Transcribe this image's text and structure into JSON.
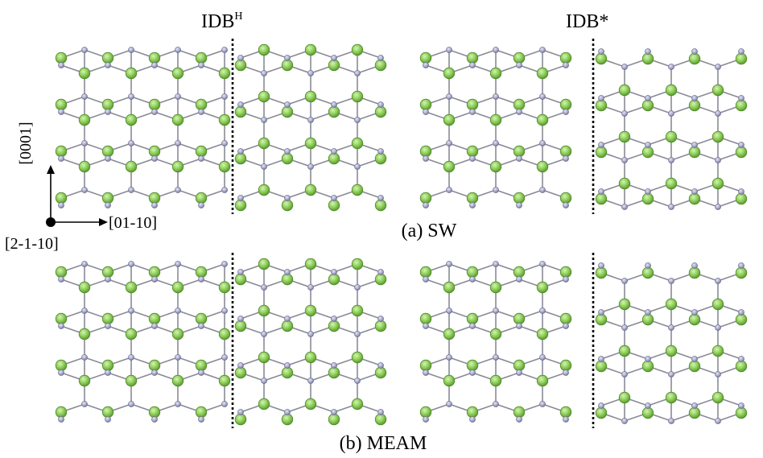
{
  "labels": {
    "idbh_main": "IDB",
    "idbh_sup": "H",
    "idbstar": "IDB*",
    "panel_a": "(a) SW",
    "panel_b": "(b) MEAM",
    "axis_vertical": "[0001]",
    "axis_horizontal": "[01-10]",
    "axis_origin": "[2-1-10]"
  },
  "panels": [
    {
      "id": "a-idbh",
      "potential": "SW",
      "boundary": "IDBH"
    },
    {
      "id": "a-idbstar",
      "potential": "SW",
      "boundary": "IDB*"
    },
    {
      "id": "b-idbh",
      "potential": "MEAM",
      "boundary": "IDBH"
    },
    {
      "id": "b-idbstar",
      "potential": "MEAM",
      "boundary": "IDB*"
    }
  ],
  "colors": {
    "large_atom": "#8fce5a",
    "large_atom_stroke": "#4f8a2a",
    "small_atom": "#a9abc9",
    "small_atom_stroke": "#6d7096",
    "bond": "#8a8a96",
    "boundary_line": "#000000"
  }
}
